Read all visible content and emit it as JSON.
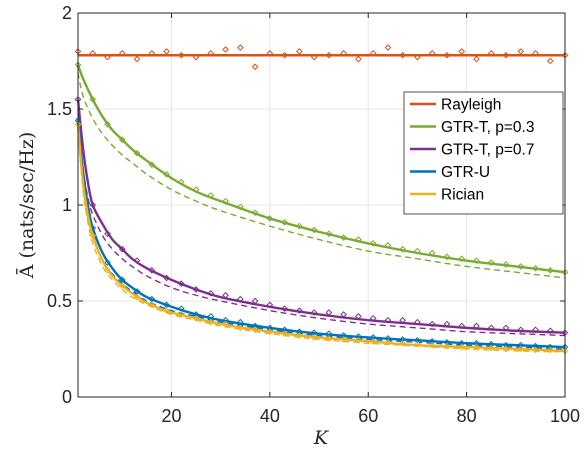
{
  "chart_data": {
    "type": "line",
    "title": "",
    "xlabel": "K",
    "ylabel": "Ā (nats/sec/Hz)",
    "xlim": [
      1,
      100
    ],
    "ylim": [
      0,
      2
    ],
    "xticks": [
      20,
      40,
      60,
      80,
      100
    ],
    "yticks": [
      0,
      0.5,
      1,
      1.5,
      2
    ],
    "yticklabels": [
      "0",
      "0.5",
      "1",
      "1.5",
      "2"
    ],
    "grid": true,
    "legend_position": "right",
    "series": [
      {
        "name": "Rayleigh",
        "color": "#D95319",
        "x": [
          1,
          100
        ],
        "y": [
          1.78,
          1.78
        ],
        "approx_x": [
          1,
          100
        ],
        "approx_y": [
          1.78,
          1.78
        ],
        "sim_x": [
          1,
          4,
          7,
          10,
          13,
          16,
          19,
          22,
          25,
          28,
          31,
          34,
          37,
          40,
          43,
          46,
          49,
          52,
          55,
          58,
          61,
          64,
          67,
          70,
          73,
          76,
          79,
          82,
          85,
          88,
          91,
          94,
          97,
          100
        ],
        "sim_y": [
          1.8,
          1.79,
          1.77,
          1.79,
          1.76,
          1.79,
          1.8,
          1.78,
          1.77,
          1.79,
          1.81,
          1.82,
          1.72,
          1.79,
          1.78,
          1.8,
          1.77,
          1.78,
          1.79,
          1.76,
          1.79,
          1.82,
          1.78,
          1.77,
          1.79,
          1.78,
          1.8,
          1.76,
          1.79,
          1.78,
          1.8,
          1.79,
          1.75,
          1.78
        ]
      },
      {
        "name": "GTR-T, p=0.3",
        "color": "#77AC30",
        "x": [
          1,
          2,
          4,
          6,
          8,
          10,
          12,
          15,
          20,
          25,
          30,
          40,
          50,
          60,
          70,
          80,
          90,
          100
        ],
        "y": [
          1.73,
          1.66,
          1.55,
          1.46,
          1.39,
          1.34,
          1.29,
          1.23,
          1.14,
          1.07,
          1.02,
          0.93,
          0.86,
          0.8,
          0.75,
          0.71,
          0.68,
          0.65
        ],
        "approx_x": [
          1,
          2,
          4,
          6,
          8,
          10,
          12,
          15,
          20,
          25,
          30,
          40,
          50,
          60,
          70,
          80,
          90,
          100
        ],
        "approx_y": [
          1.69,
          1.57,
          1.45,
          1.37,
          1.31,
          1.26,
          1.22,
          1.16,
          1.08,
          1.02,
          0.97,
          0.89,
          0.82,
          0.76,
          0.72,
          0.68,
          0.65,
          0.62
        ],
        "sim_x": [
          1,
          4,
          7,
          10,
          13,
          16,
          19,
          22,
          25,
          28,
          31,
          34,
          37,
          40,
          43,
          46,
          49,
          52,
          55,
          58,
          61,
          64,
          67,
          70,
          73,
          76,
          79,
          82,
          85,
          88,
          91,
          94,
          97,
          100
        ],
        "sim_y": [
          1.73,
          1.55,
          1.42,
          1.34,
          1.27,
          1.21,
          1.16,
          1.12,
          1.08,
          1.05,
          1.02,
          0.99,
          0.96,
          0.93,
          0.91,
          0.89,
          0.87,
          0.85,
          0.83,
          0.82,
          0.8,
          0.79,
          0.77,
          0.76,
          0.75,
          0.73,
          0.72,
          0.71,
          0.7,
          0.69,
          0.68,
          0.67,
          0.66,
          0.65
        ]
      },
      {
        "name": "GTR-T, p=0.7",
        "color": "#7E2F8E",
        "x": [
          1,
          2,
          3,
          4,
          6,
          8,
          10,
          12,
          15,
          20,
          25,
          30,
          40,
          50,
          60,
          70,
          80,
          90,
          100
        ],
        "y": [
          1.55,
          1.3,
          1.12,
          1.0,
          0.9,
          0.82,
          0.77,
          0.72,
          0.67,
          0.61,
          0.56,
          0.52,
          0.47,
          0.43,
          0.4,
          0.38,
          0.36,
          0.345,
          0.335
        ],
        "approx_x": [
          1,
          2,
          3,
          4,
          6,
          8,
          10,
          12,
          15,
          20,
          25,
          30,
          40,
          50,
          60,
          70,
          80,
          90,
          100
        ],
        "approx_y": [
          1.5,
          1.2,
          1.04,
          0.95,
          0.84,
          0.77,
          0.72,
          0.68,
          0.63,
          0.57,
          0.53,
          0.5,
          0.45,
          0.41,
          0.38,
          0.36,
          0.34,
          0.33,
          0.32
        ],
        "sim_x": [
          1,
          4,
          7,
          10,
          13,
          16,
          19,
          22,
          25,
          28,
          31,
          34,
          37,
          40,
          43,
          46,
          49,
          52,
          55,
          58,
          61,
          64,
          67,
          70,
          73,
          76,
          79,
          82,
          85,
          88,
          91,
          94,
          97,
          100
        ],
        "sim_y": [
          1.55,
          1.0,
          0.85,
          0.77,
          0.71,
          0.66,
          0.62,
          0.59,
          0.56,
          0.54,
          0.53,
          0.51,
          0.5,
          0.48,
          0.46,
          0.45,
          0.44,
          0.44,
          0.43,
          0.42,
          0.41,
          0.4,
          0.4,
          0.39,
          0.38,
          0.38,
          0.37,
          0.37,
          0.36,
          0.36,
          0.35,
          0.35,
          0.345,
          0.335
        ]
      },
      {
        "name": "GTR-U",
        "color": "#0072BD",
        "x": [
          1,
          2,
          3,
          4,
          6,
          8,
          10,
          12,
          15,
          20,
          25,
          30,
          40,
          50,
          60,
          70,
          80,
          90,
          100
        ],
        "y": [
          1.44,
          1.18,
          1.0,
          0.88,
          0.75,
          0.67,
          0.61,
          0.57,
          0.52,
          0.47,
          0.43,
          0.4,
          0.36,
          0.33,
          0.31,
          0.295,
          0.28,
          0.27,
          0.26
        ],
        "approx_x": [
          1,
          2,
          3,
          4,
          6,
          8,
          10,
          12,
          15,
          20,
          25,
          30,
          40,
          50,
          60,
          70,
          80,
          90,
          100
        ],
        "approx_y": [
          1.4,
          1.1,
          0.93,
          0.84,
          0.71,
          0.64,
          0.59,
          0.55,
          0.5,
          0.45,
          0.42,
          0.39,
          0.35,
          0.32,
          0.3,
          0.285,
          0.27,
          0.26,
          0.25
        ],
        "sim_x": [
          1,
          4,
          7,
          10,
          13,
          16,
          19,
          22,
          25,
          28,
          31,
          34,
          37,
          40,
          43,
          46,
          49,
          52,
          55,
          58,
          61,
          64,
          67,
          70,
          73,
          76,
          79,
          82,
          85,
          88,
          91,
          94,
          97,
          100
        ],
        "sim_y": [
          1.44,
          0.88,
          0.7,
          0.61,
          0.55,
          0.51,
          0.48,
          0.46,
          0.43,
          0.42,
          0.4,
          0.39,
          0.37,
          0.36,
          0.35,
          0.34,
          0.335,
          0.33,
          0.32,
          0.315,
          0.31,
          0.305,
          0.3,
          0.295,
          0.29,
          0.285,
          0.28,
          0.28,
          0.275,
          0.27,
          0.27,
          0.265,
          0.26,
          0.26
        ]
      },
      {
        "name": "Rician",
        "color": "#EDB120",
        "x": [
          1,
          2,
          3,
          4,
          6,
          8,
          10,
          12,
          15,
          20,
          25,
          30,
          40,
          50,
          60,
          70,
          80,
          90,
          100
        ],
        "y": [
          1.42,
          1.12,
          0.95,
          0.84,
          0.71,
          0.63,
          0.58,
          0.54,
          0.49,
          0.44,
          0.41,
          0.38,
          0.34,
          0.31,
          0.29,
          0.27,
          0.26,
          0.25,
          0.24
        ],
        "approx_x": [
          1,
          2,
          3,
          4,
          6,
          8,
          10,
          12,
          15,
          20,
          25,
          30,
          40,
          50,
          60,
          70,
          80,
          90,
          100
        ],
        "approx_y": [
          1.39,
          1.08,
          0.91,
          0.8,
          0.68,
          0.61,
          0.56,
          0.52,
          0.48,
          0.43,
          0.4,
          0.37,
          0.33,
          0.3,
          0.28,
          0.265,
          0.25,
          0.24,
          0.235
        ],
        "sim_x": [
          1,
          4,
          7,
          10,
          13,
          16,
          19,
          22,
          25,
          28,
          31,
          34,
          37,
          40,
          43,
          46,
          49,
          52,
          55,
          58,
          61,
          64,
          67,
          70,
          73,
          76,
          79,
          82,
          85,
          88,
          91,
          94,
          97,
          100
        ],
        "sim_y": [
          1.42,
          0.84,
          0.66,
          0.58,
          0.52,
          0.48,
          0.45,
          0.43,
          0.41,
          0.39,
          0.38,
          0.36,
          0.35,
          0.34,
          0.33,
          0.32,
          0.31,
          0.305,
          0.3,
          0.295,
          0.29,
          0.285,
          0.28,
          0.275,
          0.27,
          0.265,
          0.26,
          0.26,
          0.255,
          0.25,
          0.25,
          0.245,
          0.245,
          0.24
        ]
      }
    ]
  }
}
